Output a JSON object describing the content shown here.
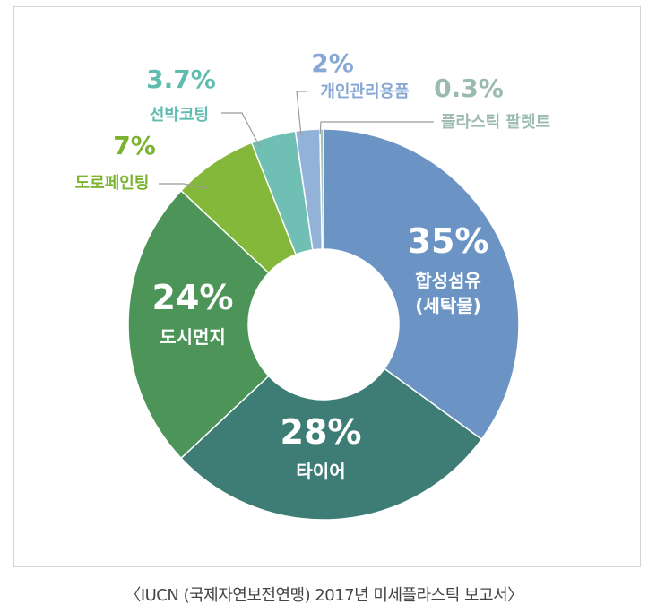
{
  "chart_data": {
    "type": "pie",
    "title": "",
    "center_hole": true,
    "slices": [
      {
        "label": "합성섬유",
        "label2": "(세탁물)",
        "pct_text": "35%",
        "value": 35,
        "color": "#6b94c4",
        "text_color": "#ffffff",
        "placement": "inside"
      },
      {
        "label": "타이어",
        "label2": "",
        "pct_text": "28%",
        "value": 28,
        "color": "#3d7d76",
        "text_color": "#ffffff",
        "placement": "inside"
      },
      {
        "label": "도시먼지",
        "label2": "",
        "pct_text": "24%",
        "value": 24,
        "color": "#4d9458",
        "text_color": "#ffffff",
        "placement": "inside"
      },
      {
        "label": "도로페인팅",
        "label2": "",
        "pct_text": "7%",
        "value": 7,
        "color": "#84b83a",
        "text_color": "#7bb331",
        "placement": "outside"
      },
      {
        "label": "선박코팅",
        "label2": "",
        "pct_text": "3.7%",
        "value": 3.7,
        "color": "#70bfb4",
        "text_color": "#5fbcae",
        "placement": "outside"
      },
      {
        "label": "개인관리용품",
        "label2": "",
        "pct_text": "2%",
        "value": 2,
        "color": "#93b2d8",
        "text_color": "#87a8d4",
        "placement": "outside"
      },
      {
        "label": "플라스틱 팔렛트",
        "label2": "",
        "pct_text": "0.3%",
        "value": 0.3,
        "color": "#a7c3bb",
        "text_color": "#9bbbb2",
        "placement": "outside"
      }
    ]
  },
  "caption": "〈IUCN (국제자연보전연맹) 2017년 미세플라스틱 보고서〉"
}
